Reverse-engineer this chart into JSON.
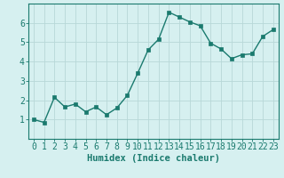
{
  "x": [
    0,
    1,
    2,
    3,
    4,
    5,
    6,
    7,
    8,
    9,
    10,
    11,
    12,
    13,
    14,
    15,
    16,
    17,
    18,
    19,
    20,
    21,
    22,
    23
  ],
  "y": [
    1.0,
    0.85,
    2.15,
    1.65,
    1.8,
    1.4,
    1.65,
    1.25,
    1.6,
    2.25,
    3.4,
    4.6,
    5.15,
    6.55,
    6.3,
    6.05,
    5.85,
    4.95,
    4.65,
    4.15,
    4.35,
    4.4,
    5.3,
    5.65
  ],
  "line_color": "#1a7a6e",
  "marker": "s",
  "markersize": 2.5,
  "linewidth": 1.0,
  "bg_color": "#d6f0f0",
  "grid_color": "#b8d8d8",
  "xlabel": "Humidex (Indice chaleur)",
  "xlabel_fontsize": 7.5,
  "xlim": [
    -0.5,
    23.5
  ],
  "ylim": [
    0,
    7
  ],
  "xtick_labels": [
    "0",
    "1",
    "2",
    "3",
    "4",
    "5",
    "6",
    "7",
    "8",
    "9",
    "10",
    "11",
    "12",
    "13",
    "14",
    "15",
    "16",
    "17",
    "18",
    "19",
    "20",
    "21",
    "22",
    "23"
  ],
  "ytick_values": [
    1,
    2,
    3,
    4,
    5,
    6
  ],
  "tick_fontsize": 7,
  "tick_color": "#1a7a6e",
  "spine_color": "#1a7a6e"
}
